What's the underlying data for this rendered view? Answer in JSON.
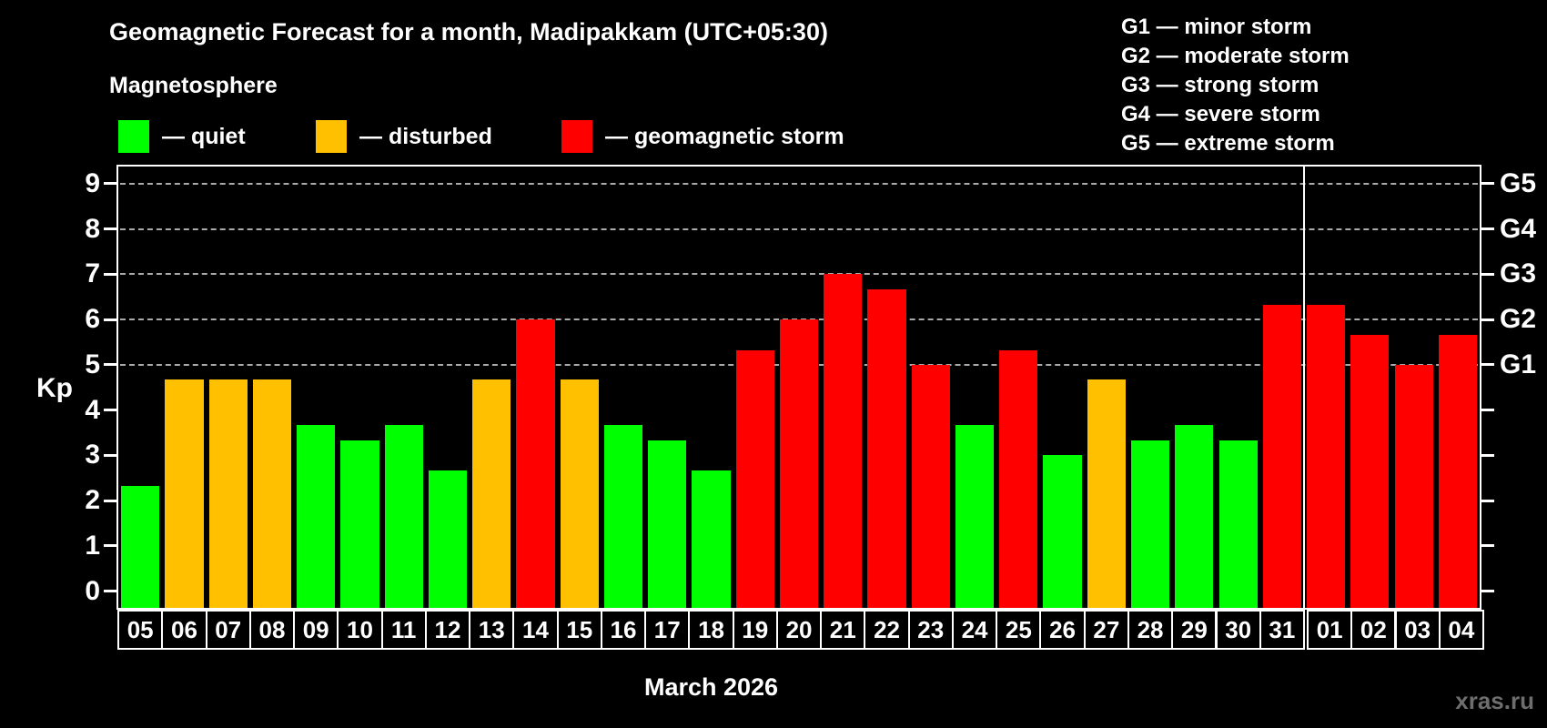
{
  "title": "Geomagnetic Forecast for a month, Madipakkam (UTC+05:30)",
  "subtitle": "Magnetosphere",
  "legend": {
    "items": [
      {
        "key": "quiet",
        "label": "— quiet",
        "color": "#00ff00"
      },
      {
        "key": "disturbed",
        "label": "— disturbed",
        "color": "#ffc000"
      },
      {
        "key": "storm",
        "label": "— geomagnetic storm",
        "color": "#ff0000"
      }
    ]
  },
  "g_legend": [
    "G1 — minor storm",
    "G2 — moderate storm",
    "G3 — strong storm",
    "G4 — severe storm",
    "G5 — extreme storm"
  ],
  "axis": {
    "ylabel": "Kp",
    "yticks": [
      0,
      1,
      2,
      3,
      4,
      5,
      6,
      7,
      8,
      9
    ],
    "right_labels": [
      {
        "value": 5,
        "label": "G1"
      },
      {
        "value": 6,
        "label": "G2"
      },
      {
        "value": 7,
        "label": "G3"
      },
      {
        "value": 8,
        "label": "G4"
      },
      {
        "value": 9,
        "label": "G5"
      }
    ]
  },
  "month_label": "March 2026",
  "watermark": "xras.ru",
  "chart_data": {
    "type": "bar",
    "title": "Geomagnetic Forecast for a month, Madipakkam (UTC+05:30)",
    "xlabel": "March 2026",
    "ylabel": "Kp",
    "ylim": [
      0,
      9
    ],
    "grid": "horizontal dashed lines at Kp 5,6,7,8,9 (G1-G5), legend top-right",
    "categories": [
      "05",
      "06",
      "07",
      "08",
      "09",
      "10",
      "11",
      "12",
      "13",
      "14",
      "15",
      "16",
      "17",
      "18",
      "19",
      "20",
      "21",
      "22",
      "23",
      "24",
      "25",
      "26",
      "27",
      "28",
      "29",
      "30",
      "31",
      "01",
      "02",
      "03",
      "04"
    ],
    "values": [
      2.33,
      4.67,
      4.67,
      4.67,
      3.67,
      3.33,
      3.67,
      2.67,
      4.67,
      6,
      4.67,
      3.67,
      3.33,
      2.67,
      5.33,
      6,
      7,
      6.67,
      5,
      3.67,
      5.33,
      3,
      4.67,
      3.33,
      3.67,
      3.33,
      6.33,
      6.33,
      5.67,
      5,
      5.67
    ],
    "statuses": [
      "quiet",
      "disturbed",
      "disturbed",
      "disturbed",
      "quiet",
      "quiet",
      "quiet",
      "quiet",
      "disturbed",
      "storm",
      "disturbed",
      "quiet",
      "quiet",
      "quiet",
      "storm",
      "storm",
      "storm",
      "storm",
      "storm",
      "quiet",
      "storm",
      "quiet",
      "disturbed",
      "quiet",
      "quiet",
      "quiet",
      "storm",
      "storm",
      "storm",
      "storm",
      "storm"
    ],
    "status_colors": {
      "quiet": "#00ff00",
      "disturbed": "#ffc000",
      "storm": "#ff0000"
    },
    "month_divider_after_index": 26
  }
}
